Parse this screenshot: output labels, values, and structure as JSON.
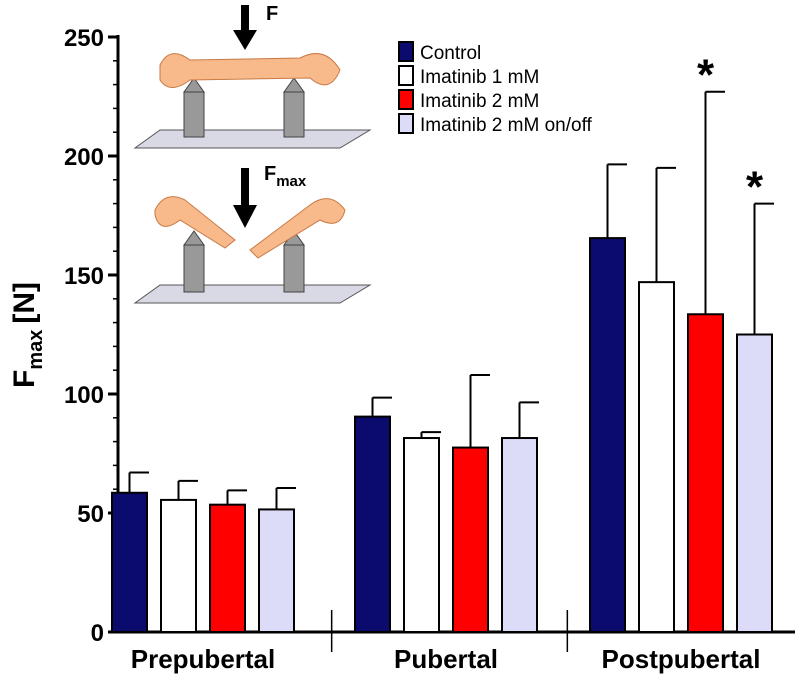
{
  "chart_data": {
    "type": "bar",
    "ylabel": {
      "main": "F",
      "sub": "max",
      "unit": "[N]"
    },
    "illustration": {
      "force_label": "F",
      "max_label": {
        "main": "F",
        "sub": "max"
      }
    },
    "categories": [
      "Prepubertal",
      "Pubertal",
      "Postpubertal"
    ],
    "series": [
      {
        "name": "Control",
        "color": "#0b0b6e",
        "values": [
          58.5,
          90.5,
          165.5
        ],
        "errors": [
          8.5,
          8,
          31
        ]
      },
      {
        "name": "Imatinib 1 mM",
        "color": "#ffffff",
        "values": [
          55.5,
          81.5,
          147
        ],
        "errors": [
          8,
          2.5,
          48
        ]
      },
      {
        "name": "Imatinib 2 mM",
        "color": "#ff0000",
        "values": [
          53.5,
          77.5,
          133.5
        ],
        "errors": [
          6,
          30.5,
          93.5
        ],
        "markers": [
          null,
          null,
          "*"
        ]
      },
      {
        "name": "Imatinib 2 mM on/off",
        "color": "#dcdcf8",
        "values": [
          51.5,
          81.5,
          125
        ],
        "errors": [
          9,
          15,
          55
        ],
        "markers": [
          null,
          null,
          "*"
        ]
      }
    ],
    "ylim": [
      0,
      250
    ],
    "yticks": [
      0,
      50,
      100,
      150,
      200,
      250
    ],
    "yminorticks": [
      10,
      20,
      30,
      40,
      60,
      70,
      80,
      90,
      110,
      120,
      130,
      140,
      160,
      170,
      180,
      190,
      210,
      220,
      230,
      240
    ],
    "legend": "top-right"
  }
}
